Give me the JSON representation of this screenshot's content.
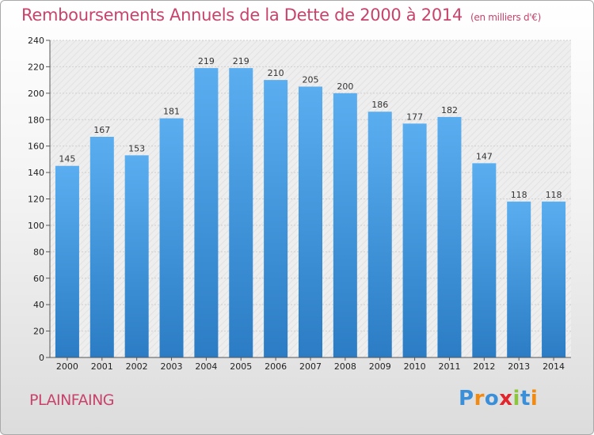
{
  "title": "Remboursements Annuels de la Dette de 2000 à 2014",
  "unit": "(en milliers d'€)",
  "city": "PLAINFAING",
  "brand": {
    "letters": [
      "P",
      "r",
      "o",
      "x",
      "i",
      "t",
      "i"
    ],
    "colors": [
      "#3a8fd8",
      "#f08a12",
      "#3a8fd8",
      "#e0252c",
      "#8cc63e",
      "#3a8fd8",
      "#f08a12"
    ]
  },
  "colors": {
    "accent": "#c8436b",
    "bar_top": "#5aaef0",
    "bar_bottom": "#2b7cc4"
  },
  "chart_data": {
    "type": "bar",
    "categories": [
      "2000",
      "2001",
      "2002",
      "2003",
      "2004",
      "2005",
      "2006",
      "2007",
      "2008",
      "2009",
      "2010",
      "2011",
      "2012",
      "2013",
      "2014"
    ],
    "values": [
      145,
      167,
      153,
      181,
      219,
      219,
      210,
      205,
      200,
      186,
      177,
      182,
      147,
      118,
      118
    ],
    "yticks": [
      0,
      20,
      40,
      60,
      80,
      100,
      120,
      140,
      160,
      180,
      200,
      220,
      240
    ],
    "ylim": [
      0,
      240
    ],
    "grid": true,
    "legend": "none"
  }
}
